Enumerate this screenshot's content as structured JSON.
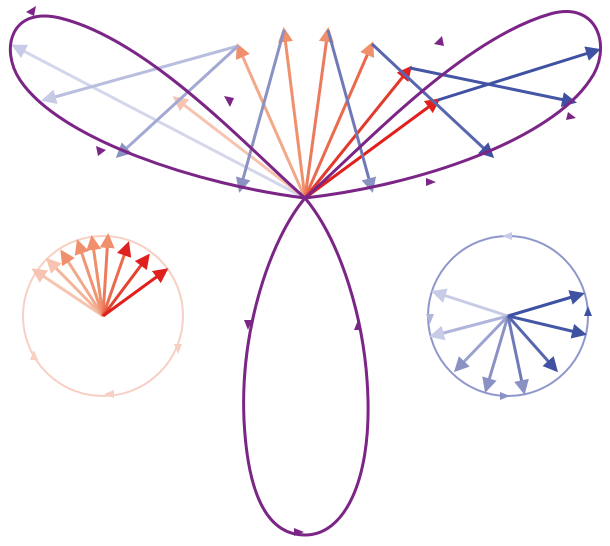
{
  "diagram": {
    "description_visible_text": [],
    "colors": {
      "curve": "#7b2586",
      "red_arrow": "#e0201c",
      "salmon_arrow": "#ef8f6b",
      "peach_arrow": "#f6c4b0",
      "blue_arrow": "#3f51a3",
      "slate_arrow": "#8a92c4",
      "pale_blue_arrow": "#c7cbe6",
      "red_circle": "#f8cfc3",
      "blue_circle": "#8f98cc"
    },
    "lobes": 3,
    "fan_arrows": 12,
    "red_circle_arrows": 9,
    "blue_circle_arrows": 9
  }
}
